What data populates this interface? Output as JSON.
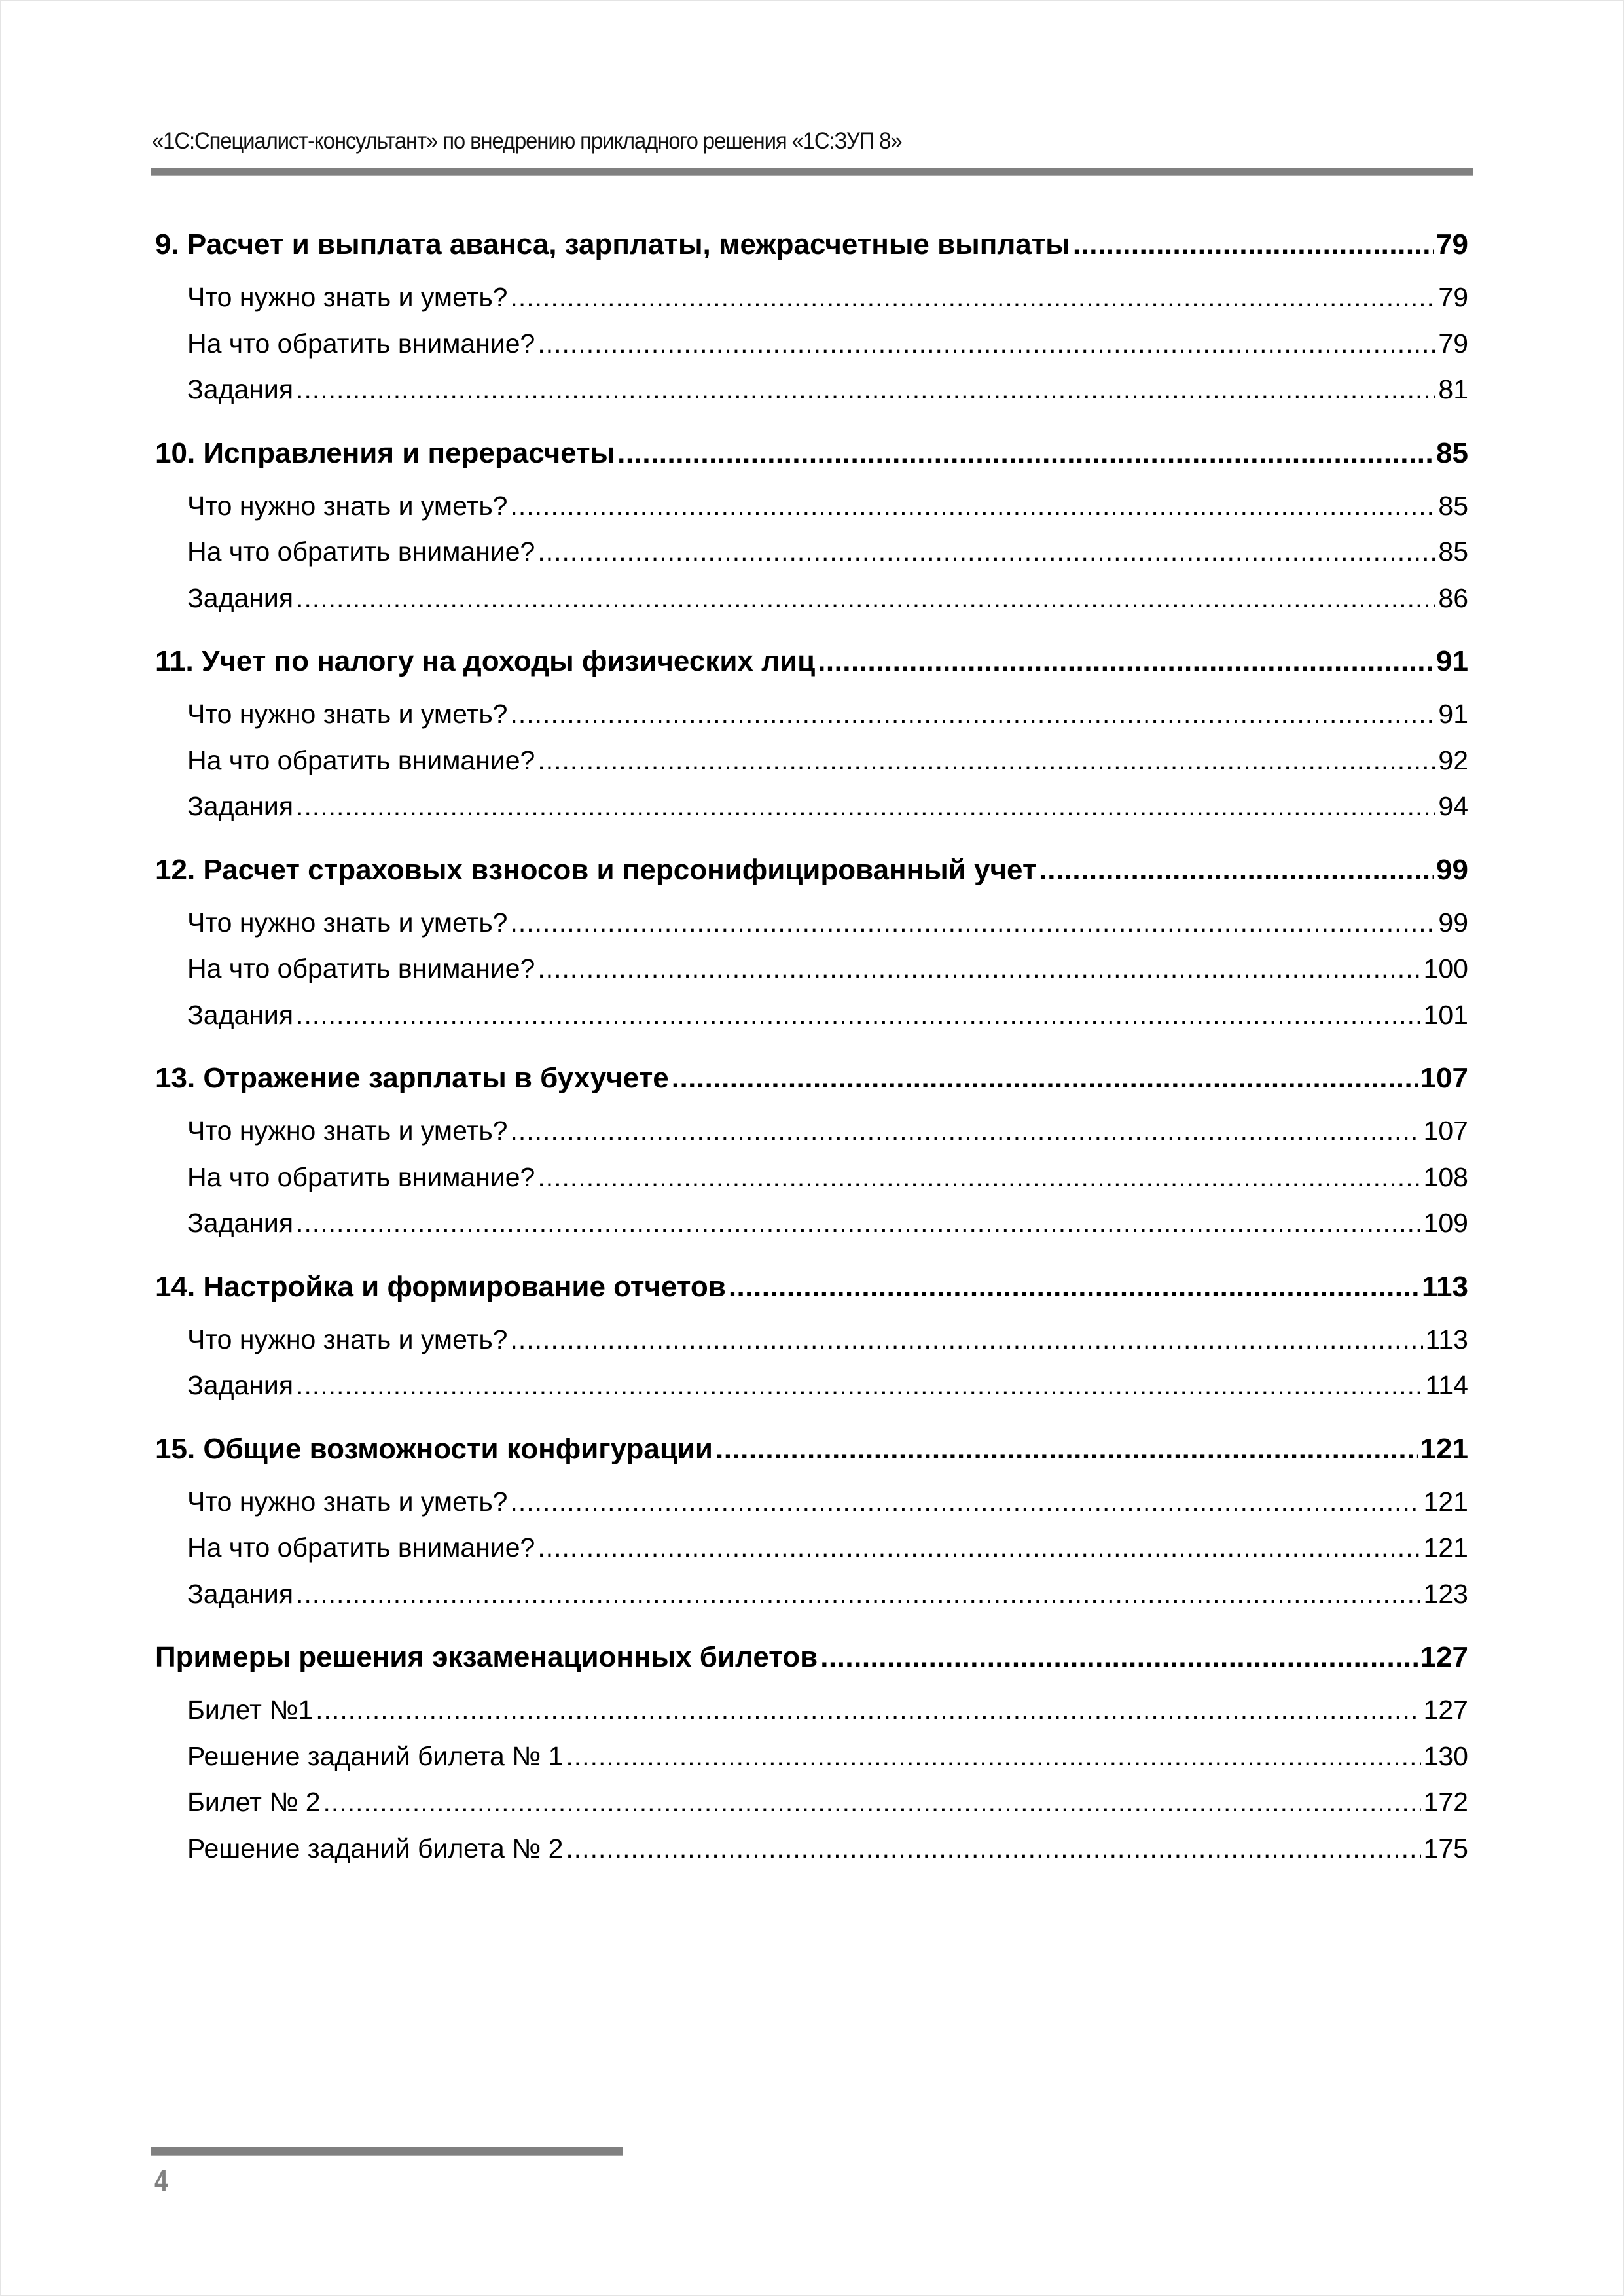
{
  "header": {
    "title": "«1С:Специалист-консультант» по внедрению прикладного решения «1С:ЗУП 8»"
  },
  "toc": [
    {
      "title": "9. Расчет и выплата аванса, зарплаты, межрасчетные выплаты",
      "page": "79",
      "items": [
        {
          "title": "Что нужно знать и уметь?",
          "page": "79"
        },
        {
          "title": "На что обратить внимание?",
          "page": "79"
        },
        {
          "title": "Задания",
          "page": "81"
        }
      ]
    },
    {
      "title": "10. Исправления и перерасчеты",
      "page": "85",
      "items": [
        {
          "title": "Что нужно знать и уметь?",
          "page": "85"
        },
        {
          "title": "На что обратить внимание?",
          "page": "85"
        },
        {
          "title": "Задания",
          "page": "86"
        }
      ]
    },
    {
      "title": "11. Учет по налогу на доходы физических лиц",
      "page": "91",
      "items": [
        {
          "title": "Что нужно знать и уметь?",
          "page": "91"
        },
        {
          "title": "На что обратить внимание?",
          "page": "92"
        },
        {
          "title": "Задания",
          "page": "94"
        }
      ]
    },
    {
      "title": "12. Расчет страховых взносов и персонифицированный учет",
      "page": "99",
      "items": [
        {
          "title": "Что нужно знать и уметь?",
          "page": "99"
        },
        {
          "title": "На что обратить внимание?",
          "page": "100"
        },
        {
          "title": "Задания",
          "page": "101"
        }
      ]
    },
    {
      "title": "13. Отражение зарплаты в бухучете",
      "page": "107",
      "items": [
        {
          "title": "Что нужно знать и уметь?",
          "page": "107"
        },
        {
          "title": "На что обратить внимание?",
          "page": "108"
        },
        {
          "title": "Задания",
          "page": "109"
        }
      ]
    },
    {
      "title": "14. Настройка и формирование отчетов",
      "page": "113",
      "items": [
        {
          "title": "Что нужно знать и уметь?",
          "page": "113"
        },
        {
          "title": "Задания",
          "page": "114"
        }
      ]
    },
    {
      "title": "15. Общие возможности конфигурации",
      "page": "121",
      "items": [
        {
          "title": "Что нужно знать и уметь?",
          "page": "121"
        },
        {
          "title": "На что обратить внимание?",
          "page": "121"
        },
        {
          "title": "Задания",
          "page": "123"
        }
      ]
    },
    {
      "title": "Примеры решения экзаменационных билетов",
      "page": "127",
      "items": [
        {
          "title": "Билет №1",
          "page": "127"
        },
        {
          "title": "Решение заданий билета № 1",
          "page": "130"
        },
        {
          "title": "Билет № 2",
          "page": "172"
        },
        {
          "title": "Решение заданий билета № 2",
          "page": "175"
        }
      ]
    }
  ],
  "footer": {
    "page_number": "4"
  },
  "colors": {
    "rule": "#808080",
    "page_number": "#808080",
    "text": "#000000"
  }
}
